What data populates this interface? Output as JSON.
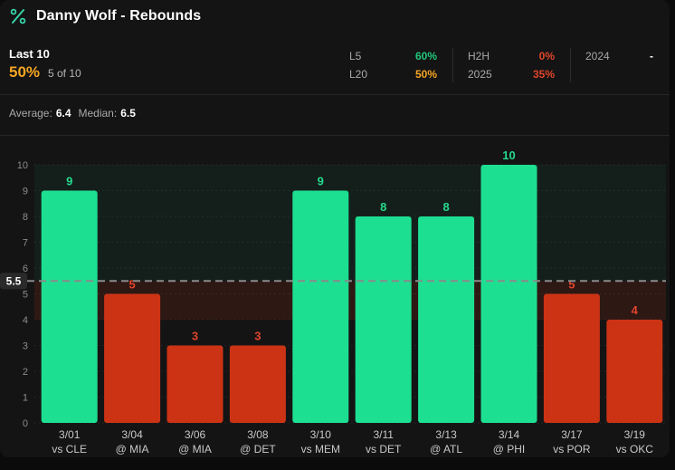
{
  "header": {
    "title": "Danny Wolf - Rebounds",
    "icon": "percent-icon"
  },
  "summary": {
    "last10_label": "Last 10",
    "last10_pct": "50%",
    "last10_count": "5 of 10",
    "stats": [
      {
        "label": "L5",
        "value": "60%",
        "color": "#22c77a"
      },
      {
        "label": "L20",
        "value": "50%",
        "color": "#f5a623"
      },
      {
        "label": "H2H",
        "value": "0%",
        "color": "#e0452b"
      },
      {
        "label": "2025",
        "value": "35%",
        "color": "#e0452b"
      },
      {
        "label": "2024",
        "value": "-",
        "color": "#ffffff"
      }
    ],
    "average_label": "Average:",
    "average_value": "6.4",
    "median_label": "Median:",
    "median_value": "6.5"
  },
  "colors": {
    "over": "#1ddf92",
    "under": "#cc3314",
    "over_text": "#25d98c",
    "under_text": "#e0452b"
  },
  "chart_data": {
    "type": "bar",
    "line": 5.5,
    "line_label": "5.5",
    "ylim": [
      0,
      10
    ],
    "yticks": [
      "0",
      "1",
      "2",
      "3",
      "4",
      "5",
      "6",
      "7",
      "8",
      "9",
      "10"
    ],
    "dates": [
      "3/01",
      "3/04",
      "3/06",
      "3/08",
      "3/10",
      "3/11",
      "3/13",
      "3/14",
      "3/17",
      "3/19"
    ],
    "opponents": [
      "vs CLE",
      "@ MIA",
      "@ MIA",
      "@ DET",
      "vs MEM",
      "vs DET",
      "@ ATL",
      "@ PHI",
      "vs POR",
      "vs OKC"
    ],
    "values": [
      9,
      5,
      3,
      3,
      9,
      8,
      8,
      10,
      5,
      4
    ]
  }
}
